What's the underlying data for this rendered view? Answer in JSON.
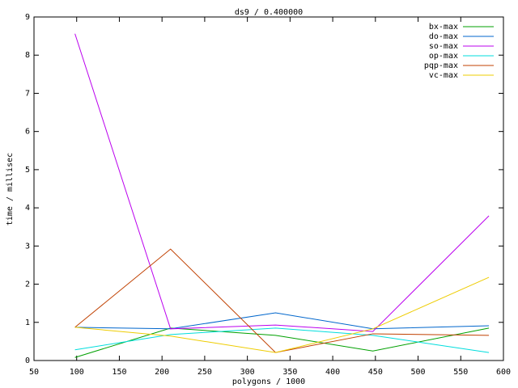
{
  "chart_data": {
    "type": "line",
    "title": "ds9 / 0.400000",
    "x_label": "polygons / 1000",
    "y_label": "time / millisec",
    "x": [
      98,
      210,
      333,
      447,
      583
    ],
    "series": [
      {
        "name": "bx-max",
        "color": "#00a000",
        "values": [
          0.08,
          0.85,
          0.66,
          0.25,
          0.85
        ]
      },
      {
        "name": "do-max",
        "color": "#0066cc",
        "values": [
          0.87,
          0.83,
          1.25,
          0.83,
          0.91
        ]
      },
      {
        "name": "so-max",
        "color": "#bb00ee",
        "values": [
          8.56,
          0.83,
          0.93,
          0.76,
          3.79
        ]
      },
      {
        "name": "op-max",
        "color": "#00dddd",
        "values": [
          0.28,
          0.68,
          0.85,
          0.66,
          0.21
        ]
      },
      {
        "name": "pqp-max",
        "color": "#c04000",
        "values": [
          0.87,
          2.92,
          0.21,
          0.7,
          0.66
        ]
      },
      {
        "name": "vc-max",
        "color": "#eecc00",
        "values": [
          0.87,
          0.64,
          0.21,
          0.83,
          2.18
        ]
      }
    ],
    "xlim": [
      50,
      600
    ],
    "xticks": [
      50,
      100,
      150,
      200,
      250,
      300,
      350,
      400,
      450,
      500,
      550,
      600
    ],
    "ylim": [
      0,
      9
    ],
    "yticks": [
      0,
      1,
      2,
      3,
      4,
      5,
      6,
      7,
      8,
      9
    ],
    "legend": "top-right"
  }
}
